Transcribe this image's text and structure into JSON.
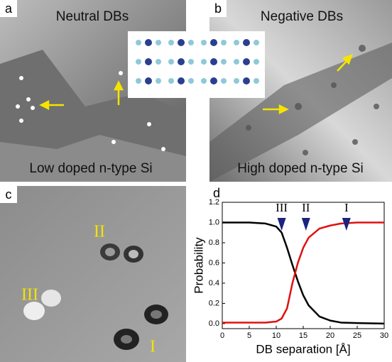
{
  "panels": [
    {
      "label": "a",
      "title": "Neutral DBs",
      "caption": "Low doped n-type Si"
    },
    {
      "label": "b",
      "title": "Negative DBs",
      "caption": "High doped n-type Si"
    },
    {
      "label": "c",
      "features": [
        "II",
        "III",
        "I"
      ]
    },
    {
      "label": "d"
    }
  ],
  "chart_data": {
    "type": "line",
    "x_label": "DB separation [Å]",
    "y_label": "Probability",
    "x": [
      0,
      5,
      8,
      10,
      11,
      12,
      13,
      14,
      15,
      16,
      18,
      20,
      22,
      25,
      30
    ],
    "series": [
      {
        "color": "#000000",
        "values": [
          1.0,
          1.0,
          0.99,
          0.96,
          0.9,
          0.75,
          0.58,
          0.42,
          0.28,
          0.18,
          0.07,
          0.03,
          0.01,
          0.005,
          0
        ]
      },
      {
        "color": "#e01010",
        "values": [
          0.01,
          0.01,
          0.01,
          0.02,
          0.05,
          0.15,
          0.4,
          0.6,
          0.75,
          0.85,
          0.94,
          0.97,
          0.99,
          1.0,
          1.0
        ]
      }
    ],
    "markers": [
      {
        "label": "III",
        "x": 11
      },
      {
        "label": "II",
        "x": 15.5
      },
      {
        "label": "I",
        "x": 23
      }
    ],
    "marker_color": "#1a237e",
    "xlim": [
      0,
      30
    ],
    "xticks": [
      0,
      5,
      10,
      15,
      20,
      25,
      30
    ],
    "ylim": [
      -0.05,
      1.2
    ],
    "yticks": [
      {
        "value": 0,
        "label": "0.0"
      },
      0.2,
      0.4,
      0.6,
      0.8,
      {
        "value": 1,
        "label": "1.0"
      },
      1.2
    ]
  }
}
